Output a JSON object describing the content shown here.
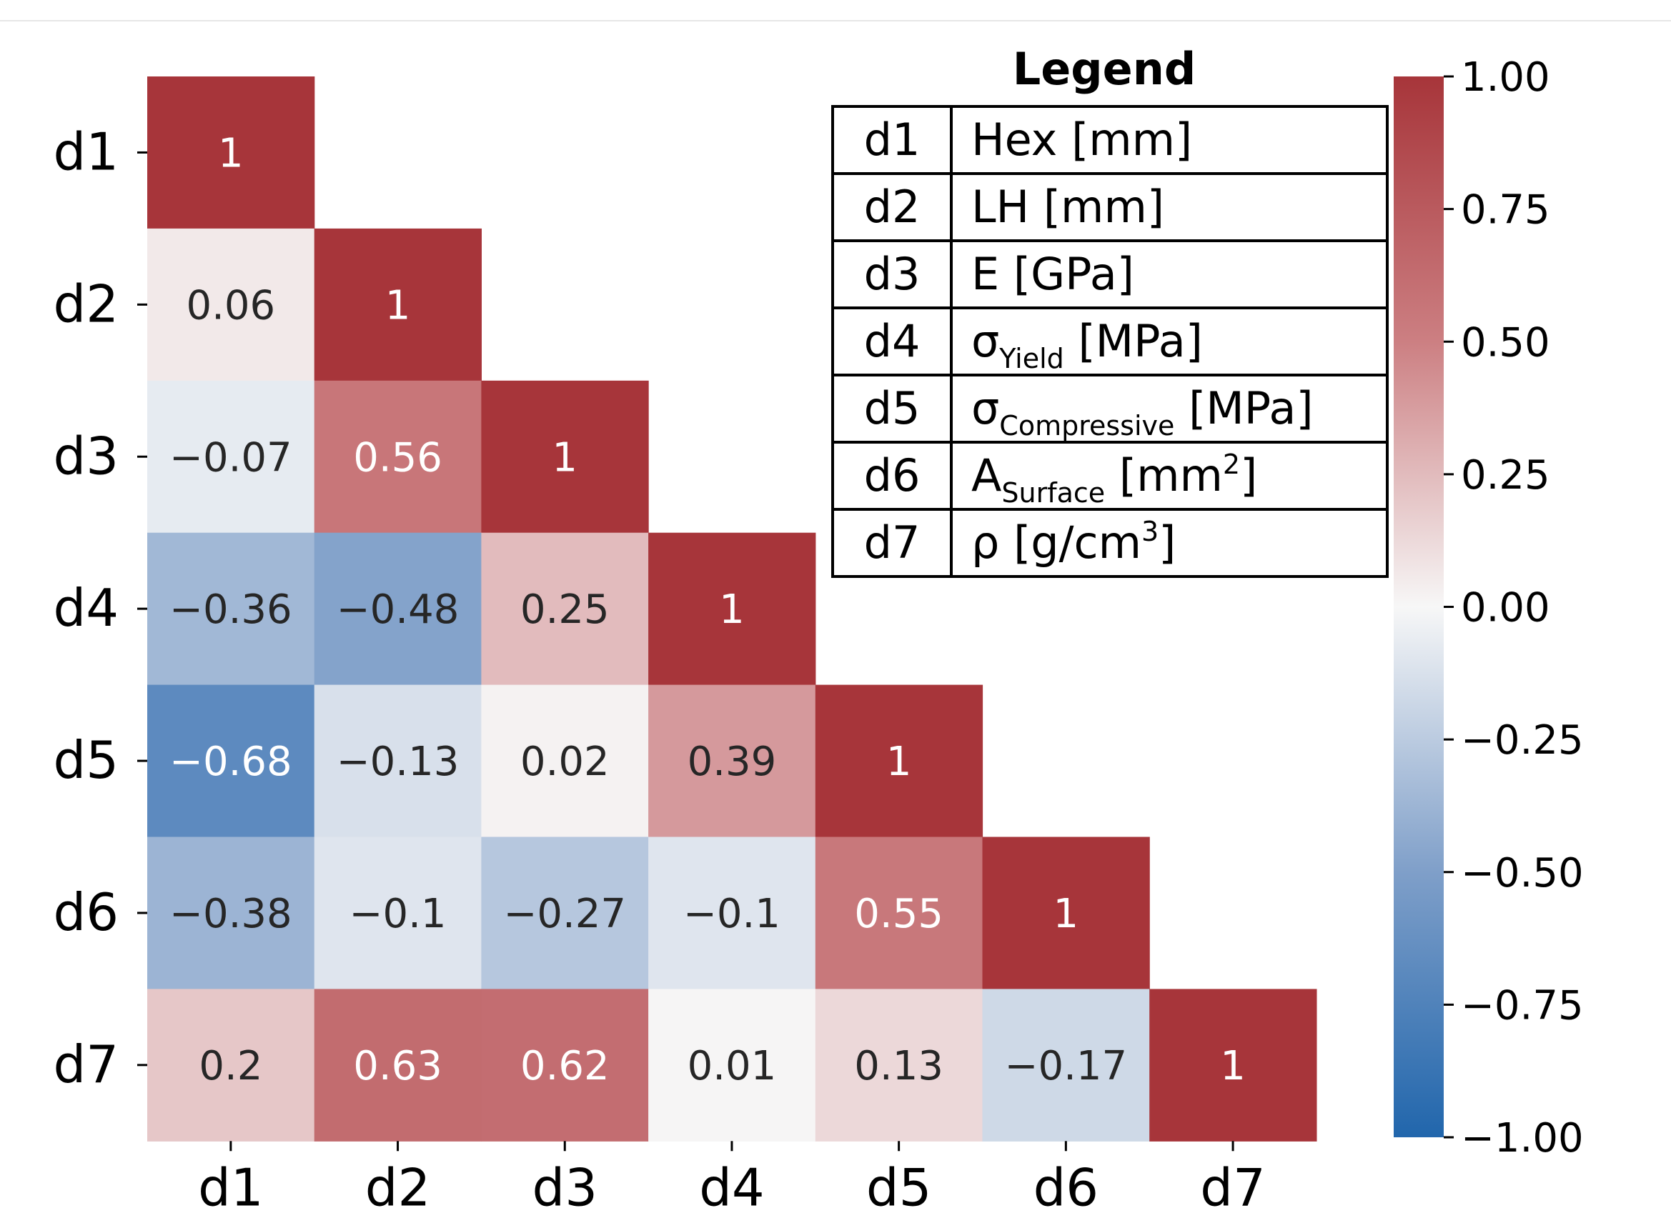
{
  "chart_data": {
    "type": "heatmap",
    "title": "",
    "labels": [
      "d1",
      "d2",
      "d3",
      "d4",
      "d5",
      "d6",
      "d7"
    ],
    "rows": [
      [
        "1"
      ],
      [
        "0.06",
        "1"
      ],
      [
        "−0.07",
        "0.56",
        "1"
      ],
      [
        "−0.36",
        "−0.48",
        "0.25",
        "1"
      ],
      [
        "−0.68",
        "−0.13",
        "0.02",
        "0.39",
        "1"
      ],
      [
        "−0.38",
        "−0.1",
        "−0.27",
        "−0.1",
        "0.55",
        "1"
      ],
      [
        "0.2",
        "0.63",
        "0.62",
        "0.01",
        "0.13",
        "−0.17",
        "1"
      ]
    ],
    "values": [
      [
        1
      ],
      [
        0.06,
        1
      ],
      [
        -0.07,
        0.56,
        1
      ],
      [
        -0.36,
        -0.48,
        0.25,
        1
      ],
      [
        -0.68,
        -0.13,
        0.02,
        0.39,
        1
      ],
      [
        -0.38,
        -0.1,
        -0.27,
        -0.1,
        0.55,
        1
      ],
      [
        0.2,
        0.63,
        0.62,
        0.01,
        0.13,
        -0.17,
        1
      ]
    ],
    "colorbar": {
      "vmin": -1,
      "vmax": 1,
      "colormap": "vlag (blue-white-red)",
      "low_color": "#2166ac",
      "mid_color": "#f7f7f7",
      "high_color": "#a7353a",
      "ticks": [
        1.0,
        0.75,
        0.5,
        0.25,
        0.0,
        -0.25,
        -0.5,
        -0.75,
        -1.0
      ],
      "tick_labels": [
        "1.00",
        "0.75",
        "0.50",
        "0.25",
        "0.00",
        "−0.25",
        "−0.50",
        "−0.75",
        "−1.00"
      ]
    }
  },
  "legend": {
    "title": "Legend",
    "rows": [
      {
        "code": "d1",
        "name": "Hex [mm]"
      },
      {
        "code": "d2",
        "name": "LH [mm]"
      },
      {
        "code": "d3",
        "name": "E [GPa]"
      },
      {
        "code": "d4",
        "symbol": "σ",
        "sub": "Yield",
        "unit": " [MPa]"
      },
      {
        "code": "d5",
        "symbol": "σ",
        "sub": "Compressive",
        "unit": " [MPa]"
      },
      {
        "code": "d6",
        "symbol": "A",
        "sub": "Surface",
        "unit": " [mm",
        "sup": "2",
        "unit_end": "]"
      },
      {
        "code": "d7",
        "name": "ρ [g/cm",
        "sup": "3",
        "unit_end": "]"
      }
    ]
  }
}
